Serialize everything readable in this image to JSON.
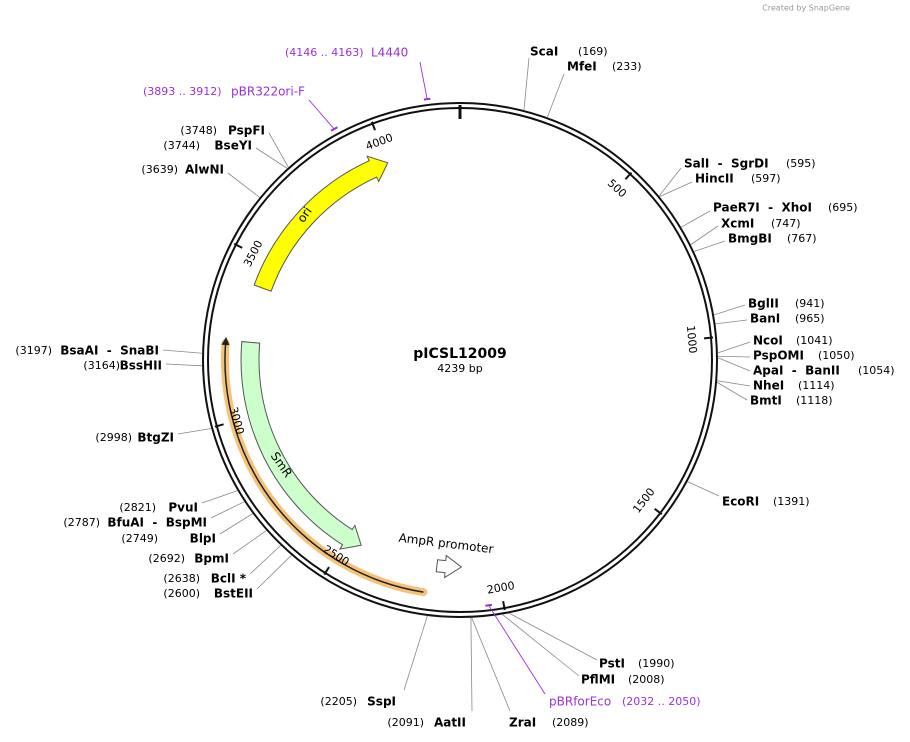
{
  "credit": "Created by SnapGene",
  "map": {
    "name": "pICSL12009",
    "size": "4239 bp"
  },
  "ticks": [
    500,
    1000,
    1500,
    2000,
    2500,
    3000,
    3500,
    4000
  ],
  "features": [
    {
      "label": "ori"
    },
    {
      "label": "SmR"
    },
    {
      "label": "AmpR promoter"
    }
  ],
  "enzymes": [
    {
      "name": "ScaI",
      "position": "(169)"
    },
    {
      "name": "MfeI",
      "position": "(233)"
    },
    {
      "name": "SalI  -  SgrDI",
      "position": "(595)"
    },
    {
      "name": "HincII",
      "position": "(597)"
    },
    {
      "name": "PaeR7I  -  XhoI",
      "position": "(695)"
    },
    {
      "name": "XcmI",
      "position": "(747)"
    },
    {
      "name": "BmgBI",
      "position": "(767)"
    },
    {
      "name": "BglII",
      "position": "(941)"
    },
    {
      "name": "BanI",
      "position": "(965)"
    },
    {
      "name": "NcoI",
      "position": "(1041)"
    },
    {
      "name": "PspOMI",
      "position": "(1050)"
    },
    {
      "name": "ApaI  -  BanII",
      "position": "(1054)"
    },
    {
      "name": "NheI",
      "position": "(1114)"
    },
    {
      "name": "BmtI",
      "position": "(1118)"
    },
    {
      "name": "EcoRI",
      "position": "(1391)"
    },
    {
      "name": "PstI",
      "position": "(1990)"
    },
    {
      "name": "PflMI",
      "position": "(2008)"
    },
    {
      "name": "ZraI",
      "position": "(2089)"
    },
    {
      "name": "AatII",
      "position": "(2091)"
    },
    {
      "name": "SspI",
      "position": "(2205)"
    },
    {
      "name": "BstEII",
      "position": "(2600)"
    },
    {
      "name": "BclI *",
      "position": "(2638)"
    },
    {
      "name": "BpmI",
      "position": "(2692)"
    },
    {
      "name": "BlpI",
      "position": "(2749)"
    },
    {
      "name": "BfuAI  -  BspMI",
      "position": "(2787)"
    },
    {
      "name": "PvuI",
      "position": "(2821)"
    },
    {
      "name": "BtgZI",
      "position": "(2998)"
    },
    {
      "name": "BssHII",
      "position": "(3164)"
    },
    {
      "name": "BsaAI  -  SnaBI",
      "position": "(3197)"
    },
    {
      "name": "AlwNI",
      "position": "(3639)"
    },
    {
      "name": "BseYI",
      "position": "(3744)"
    },
    {
      "name": "PspFI",
      "position": "(3748)"
    }
  ],
  "primers": [
    {
      "name": "L4440",
      "range": "(4146 .. 4163)"
    },
    {
      "name": "pBR322ori-F",
      "range": "(3893 .. 3912)"
    },
    {
      "name": "pBRforEco",
      "range": "(2032 .. 2050)"
    }
  ]
}
